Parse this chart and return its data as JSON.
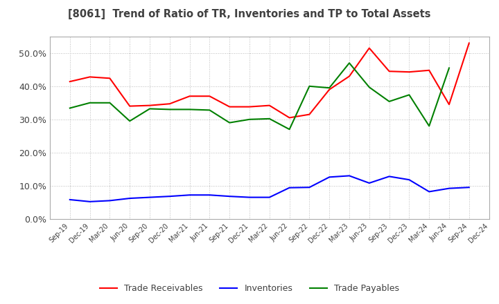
{
  "title": "[8061]  Trend of Ratio of TR, Inventories and TP to Total Assets",
  "x_labels": [
    "Sep-19",
    "Dec-19",
    "Mar-20",
    "Jun-20",
    "Sep-20",
    "Dec-20",
    "Mar-21",
    "Jun-21",
    "Sep-21",
    "Dec-21",
    "Mar-22",
    "Jun-22",
    "Sep-22",
    "Dec-22",
    "Mar-23",
    "Jun-23",
    "Sep-23",
    "Dec-23",
    "Mar-24",
    "Jun-24",
    "Sep-24",
    "Dec-24"
  ],
  "trade_receivables": [
    0.414,
    0.428,
    0.424,
    0.34,
    0.342,
    0.347,
    0.37,
    0.37,
    0.338,
    0.338,
    0.342,
    0.305,
    0.315,
    0.39,
    0.43,
    0.515,
    0.445,
    0.443,
    0.448,
    0.345,
    0.53,
    null
  ],
  "inventories": [
    0.058,
    0.052,
    0.055,
    0.062,
    0.065,
    0.068,
    0.072,
    0.072,
    0.068,
    0.065,
    0.065,
    0.094,
    0.095,
    0.126,
    0.13,
    0.108,
    0.128,
    0.118,
    0.082,
    0.092,
    0.095,
    null
  ],
  "trade_payables": [
    0.334,
    0.35,
    0.35,
    0.295,
    0.332,
    0.33,
    0.33,
    0.328,
    0.29,
    0.3,
    0.302,
    0.27,
    0.4,
    0.395,
    0.47,
    0.397,
    0.354,
    0.374,
    0.28,
    0.455,
    null,
    null
  ],
  "ylim": [
    0.0,
    0.55
  ],
  "yticks": [
    0.0,
    0.1,
    0.2,
    0.3,
    0.4,
    0.5
  ],
  "line_colors": {
    "trade_receivables": "#FF0000",
    "inventories": "#0000FF",
    "trade_payables": "#008000"
  },
  "line_width": 1.5,
  "bg_color": "#FFFFFF",
  "plot_bg_color": "#FFFFFF",
  "grid_color": "#BBBBBB",
  "title_color": "#404040",
  "tick_color": "#404040",
  "legend_labels": [
    "Trade Receivables",
    "Inventories",
    "Trade Payables"
  ]
}
